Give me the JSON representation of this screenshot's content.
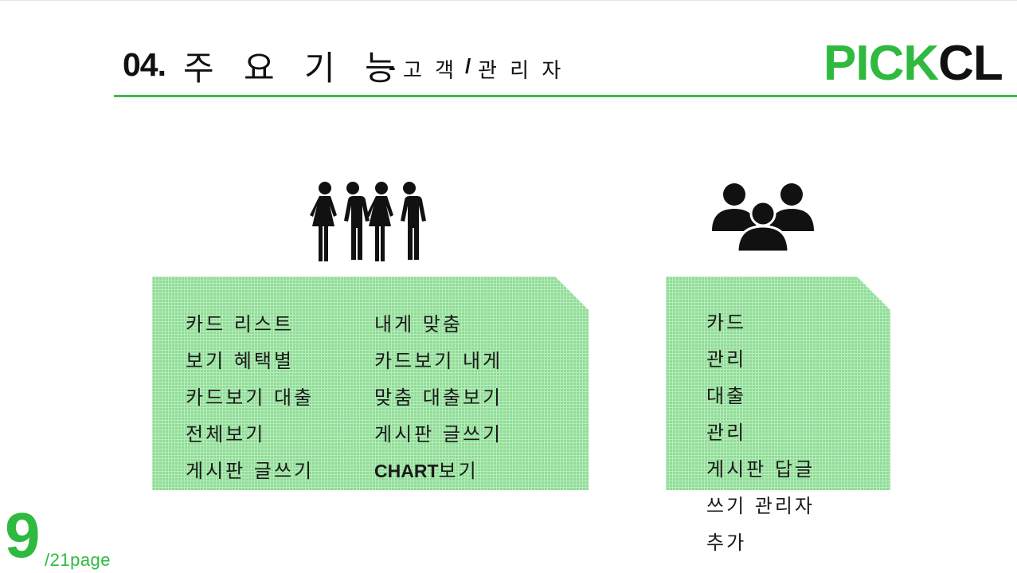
{
  "header": {
    "number": "04.",
    "title": "주 요 기 능",
    "dash": "-",
    "subtitle_part1": "고 객",
    "slash": "/",
    "subtitle_part2": "관 리 자"
  },
  "logo": {
    "green_part": "PICK",
    "dark_part": "CL"
  },
  "colors": {
    "accent": "#2fba3f",
    "box_fill": "#8fdc96",
    "text": "#111111"
  },
  "icons": {
    "customers": "people-icon",
    "admins": "group-icon"
  },
  "customer_box": {
    "left_column": [
      "카드 리스트",
      "보기 혜택별",
      "카드보기 대출",
      "전체보기",
      "게시판 글쓰기"
    ],
    "right_column": [
      "내게 맞춤",
      "카드보기 내게",
      "맞춤 대출보기",
      "게시판 글쓰기"
    ],
    "chart_bold": "CHART",
    "chart_suffix": "보기"
  },
  "admin_box": {
    "items": [
      "카드",
      "관리",
      "대출",
      "관리",
      "게시판 답글",
      "쓰기 관리자",
      "추가"
    ]
  },
  "page": {
    "current": "9",
    "total": "/21page"
  }
}
